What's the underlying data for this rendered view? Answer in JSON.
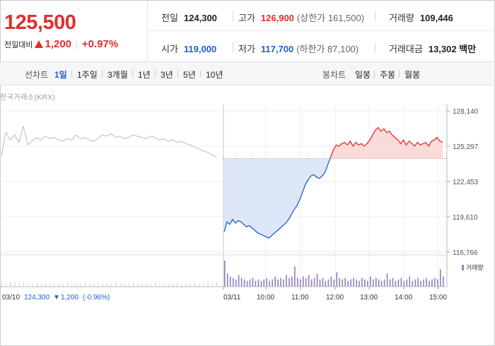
{
  "quote": {
    "price": "125,500",
    "change_label": "전일대비",
    "change_value": "1,200",
    "change_pct": "+0.97%"
  },
  "stats": {
    "prev_close": {
      "label": "전일",
      "value": "124,300"
    },
    "high": {
      "label": "고가",
      "value": "126,900",
      "sub": "(상한가 161,500)"
    },
    "volume": {
      "label": "거래량",
      "value": "109,446"
    },
    "open": {
      "label": "시가",
      "value": "119,000"
    },
    "low": {
      "label": "저가",
      "value": "117,700",
      "sub": "(하한가 87,100)"
    },
    "turnover": {
      "label": "거래대금",
      "value": "13,302",
      "unit": "백만"
    }
  },
  "toolbar": {
    "line_label": "선차트",
    "line_items": [
      "1일",
      "1주일",
      "3개월",
      "1년",
      "3년",
      "5년",
      "10년"
    ],
    "active_index": 0,
    "candle_label": "봉차트",
    "candle_items": [
      "일봉",
      "주봉",
      "월봉"
    ]
  },
  "colors": {
    "up": "#e12d2d",
    "down": "#1c5fd2",
    "prev": "#bbbbbb"
  },
  "chart_data": {
    "type": "line",
    "source": "한국거래소(KRX)",
    "yticks": [
      128140,
      125297,
      122453,
      119610,
      116766
    ],
    "yticks_label": [
      "128,140",
      "125,297",
      "122,453",
      "119,610",
      "116,766"
    ],
    "ylim": [
      116766,
      128140
    ],
    "prev_close": 124300,
    "xticks": [
      "03/10",
      "03/11",
      "10:00",
      "11:00",
      "12:00",
      "13:00",
      "14:00",
      "15:00"
    ],
    "prev_day_legend": {
      "date": "03/10",
      "close": "124,300",
      "arrow": "▼",
      "change": "1,200",
      "pct": "(-0.96%)"
    },
    "volume_legend": "거래량",
    "prev_day_series": [
      124500,
      126400,
      125800,
      126200,
      125600,
      126900,
      125400,
      125700,
      126000,
      125800,
      126100,
      125900,
      126000,
      125800,
      125700,
      125900,
      125800,
      126200,
      125900,
      126000,
      125800,
      125700,
      125900,
      126200,
      126100,
      126300,
      126000,
      126100,
      125900,
      126000,
      126200,
      126100,
      126000,
      125900,
      126100,
      126000,
      125800,
      125900,
      125700,
      125800,
      125600,
      125700,
      125500,
      125400,
      125200,
      125100,
      124900,
      124800,
      124600,
      124400
    ],
    "today_series": [
      118400,
      119200,
      119000,
      119400,
      119100,
      119300,
      119200,
      119000,
      118800,
      118900,
      118700,
      118500,
      118300,
      118200,
      118100,
      118000,
      117900,
      118100,
      118300,
      118500,
      118700,
      118900,
      119100,
      119400,
      119800,
      120200,
      120500,
      121000,
      121600,
      122200,
      122600,
      122900,
      123000,
      122800,
      122700,
      122900,
      123200,
      123800,
      124400,
      125000,
      125400,
      125300,
      125500,
      125600,
      125400,
      125700,
      125300,
      125600,
      125400,
      125500,
      125300,
      125500,
      125800,
      126200,
      126600,
      126800,
      126500,
      126700,
      126400,
      126500,
      126200,
      126000,
      125800,
      125500,
      125800,
      125400,
      125700,
      125500,
      125300,
      125600,
      125400,
      125500,
      125600,
      125300,
      125700,
      125800,
      126000,
      125700,
      125600
    ],
    "volume_prev": [
      3,
      2,
      4,
      3,
      2,
      3,
      2,
      2,
      3,
      2,
      2,
      3,
      2,
      2,
      2,
      3,
      2,
      2,
      2,
      3,
      2,
      2,
      3,
      2,
      2,
      2,
      3,
      2,
      2,
      2,
      3,
      2,
      2,
      2,
      2,
      3,
      2,
      2,
      2,
      2,
      3,
      2,
      2,
      2,
      3,
      2,
      2,
      3,
      2,
      3
    ],
    "volume_today": [
      18,
      9,
      7,
      6,
      5,
      8,
      6,
      5,
      4,
      5,
      6,
      4,
      5,
      4,
      5,
      6,
      4,
      5,
      7,
      5,
      6,
      5,
      8,
      6,
      7,
      14,
      6,
      5,
      7,
      6,
      8,
      5,
      6,
      9,
      5,
      6,
      4,
      5,
      7,
      5,
      10,
      6,
      5,
      6,
      4,
      5,
      6,
      5,
      4,
      6,
      5,
      4,
      7,
      5,
      6,
      5,
      4,
      5,
      9,
      5,
      6,
      4,
      5,
      6,
      4,
      5,
      7,
      4,
      5,
      6,
      4,
      5,
      6,
      4,
      5,
      6,
      5,
      12,
      7
    ]
  }
}
